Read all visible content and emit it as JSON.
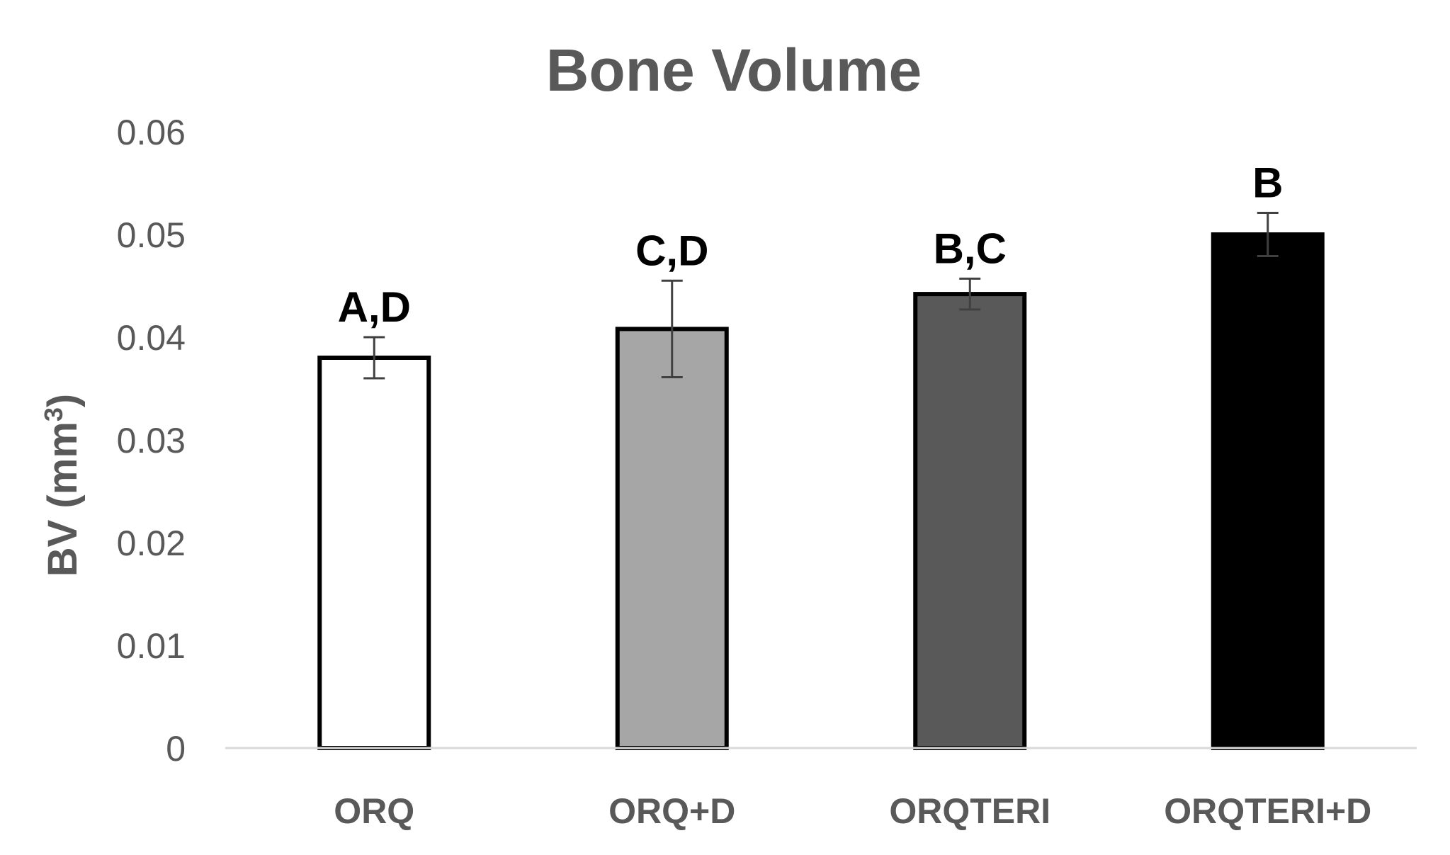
{
  "chart_data": {
    "type": "bar",
    "title": "Bone Volume",
    "xlabel": "",
    "ylabel": "BV (mm",
    "ylabel_superscript": "3",
    "ylabel_suffix": ")",
    "ylim": [
      0,
      0.06
    ],
    "yticks": [
      "0",
      "0.01",
      "0.02",
      "0.03",
      "0.04",
      "0.05",
      "0.06"
    ],
    "grid": false,
    "legend": "none",
    "categories": [
      "ORQ",
      "ORQ+D",
      "ORQTERI",
      "ORQTERI+D"
    ],
    "values": [
      0.038,
      0.0408,
      0.0442,
      0.05
    ],
    "error": [
      0.002,
      0.0047,
      0.0015,
      0.0021
    ],
    "labels": [
      "A,D",
      "C,D",
      "B,C",
      "B"
    ],
    "colors": [
      "#ffffff",
      "#a6a6a6",
      "#595959",
      "#000000"
    ],
    "bar_outline": "#000000",
    "axis_color": "#d9d9d9",
    "error_color": "#404040"
  }
}
